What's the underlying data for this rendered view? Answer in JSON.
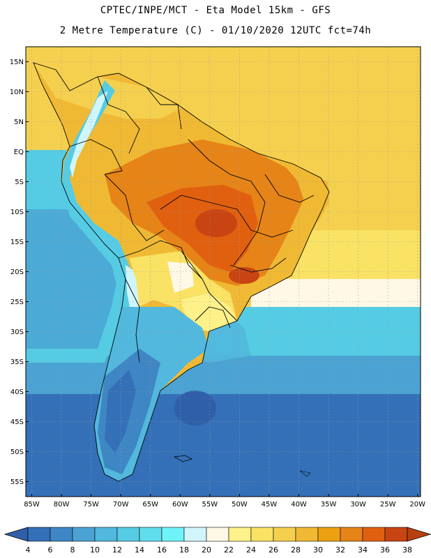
{
  "title": {
    "line1": "CPTEC/INPE/MCT -   Eta Model 15km - GFS",
    "line2": "2 Metre Temperature (C) - 01/10/2020 12UTC fct=74h"
  },
  "map": {
    "lat_labels": [
      "15N",
      "10N",
      "5N",
      "EQ",
      "5S",
      "10S",
      "15S",
      "20S",
      "25S",
      "30S",
      "35S",
      "40S",
      "45S",
      "50S",
      "55S"
    ],
    "lat_values": [
      15,
      10,
      5,
      0,
      -5,
      -10,
      -15,
      -20,
      -25,
      -30,
      -35,
      -40,
      -45,
      -50,
      -55
    ],
    "lon_labels": [
      "85W",
      "80W",
      "75W",
      "70W",
      "65W",
      "60W",
      "55W",
      "50W",
      "45W",
      "40W",
      "35W",
      "30W",
      "25W",
      "20W"
    ],
    "lon_values": [
      -85,
      -80,
      -75,
      -70,
      -65,
      -60,
      -55,
      -50,
      -45,
      -40,
      -35,
      -30,
      -25,
      -20
    ],
    "lat_range": [
      -57.5,
      17.5
    ],
    "lon_range": [
      -86.0,
      -19.5
    ]
  },
  "colorbar": {
    "ticks": [
      "4",
      "6",
      "8",
      "10",
      "12",
      "14",
      "16",
      "18",
      "20",
      "22",
      "24",
      "26",
      "28",
      "30",
      "32",
      "34",
      "36",
      "38"
    ],
    "colors": [
      "#3470b8",
      "#3f86c4",
      "#4aa3d2",
      "#52b8dd",
      "#55cce4",
      "#62dded",
      "#6ff3f8",
      "#d0f5fb",
      "#fff8e6",
      "#fff18a",
      "#f9e264",
      "#f5d04f",
      "#f0b934",
      "#eda012",
      "#e68417",
      "#e06010",
      "#c84412"
    ],
    "low_color": "#2f5fa8",
    "high_color": "#b8400f"
  }
}
